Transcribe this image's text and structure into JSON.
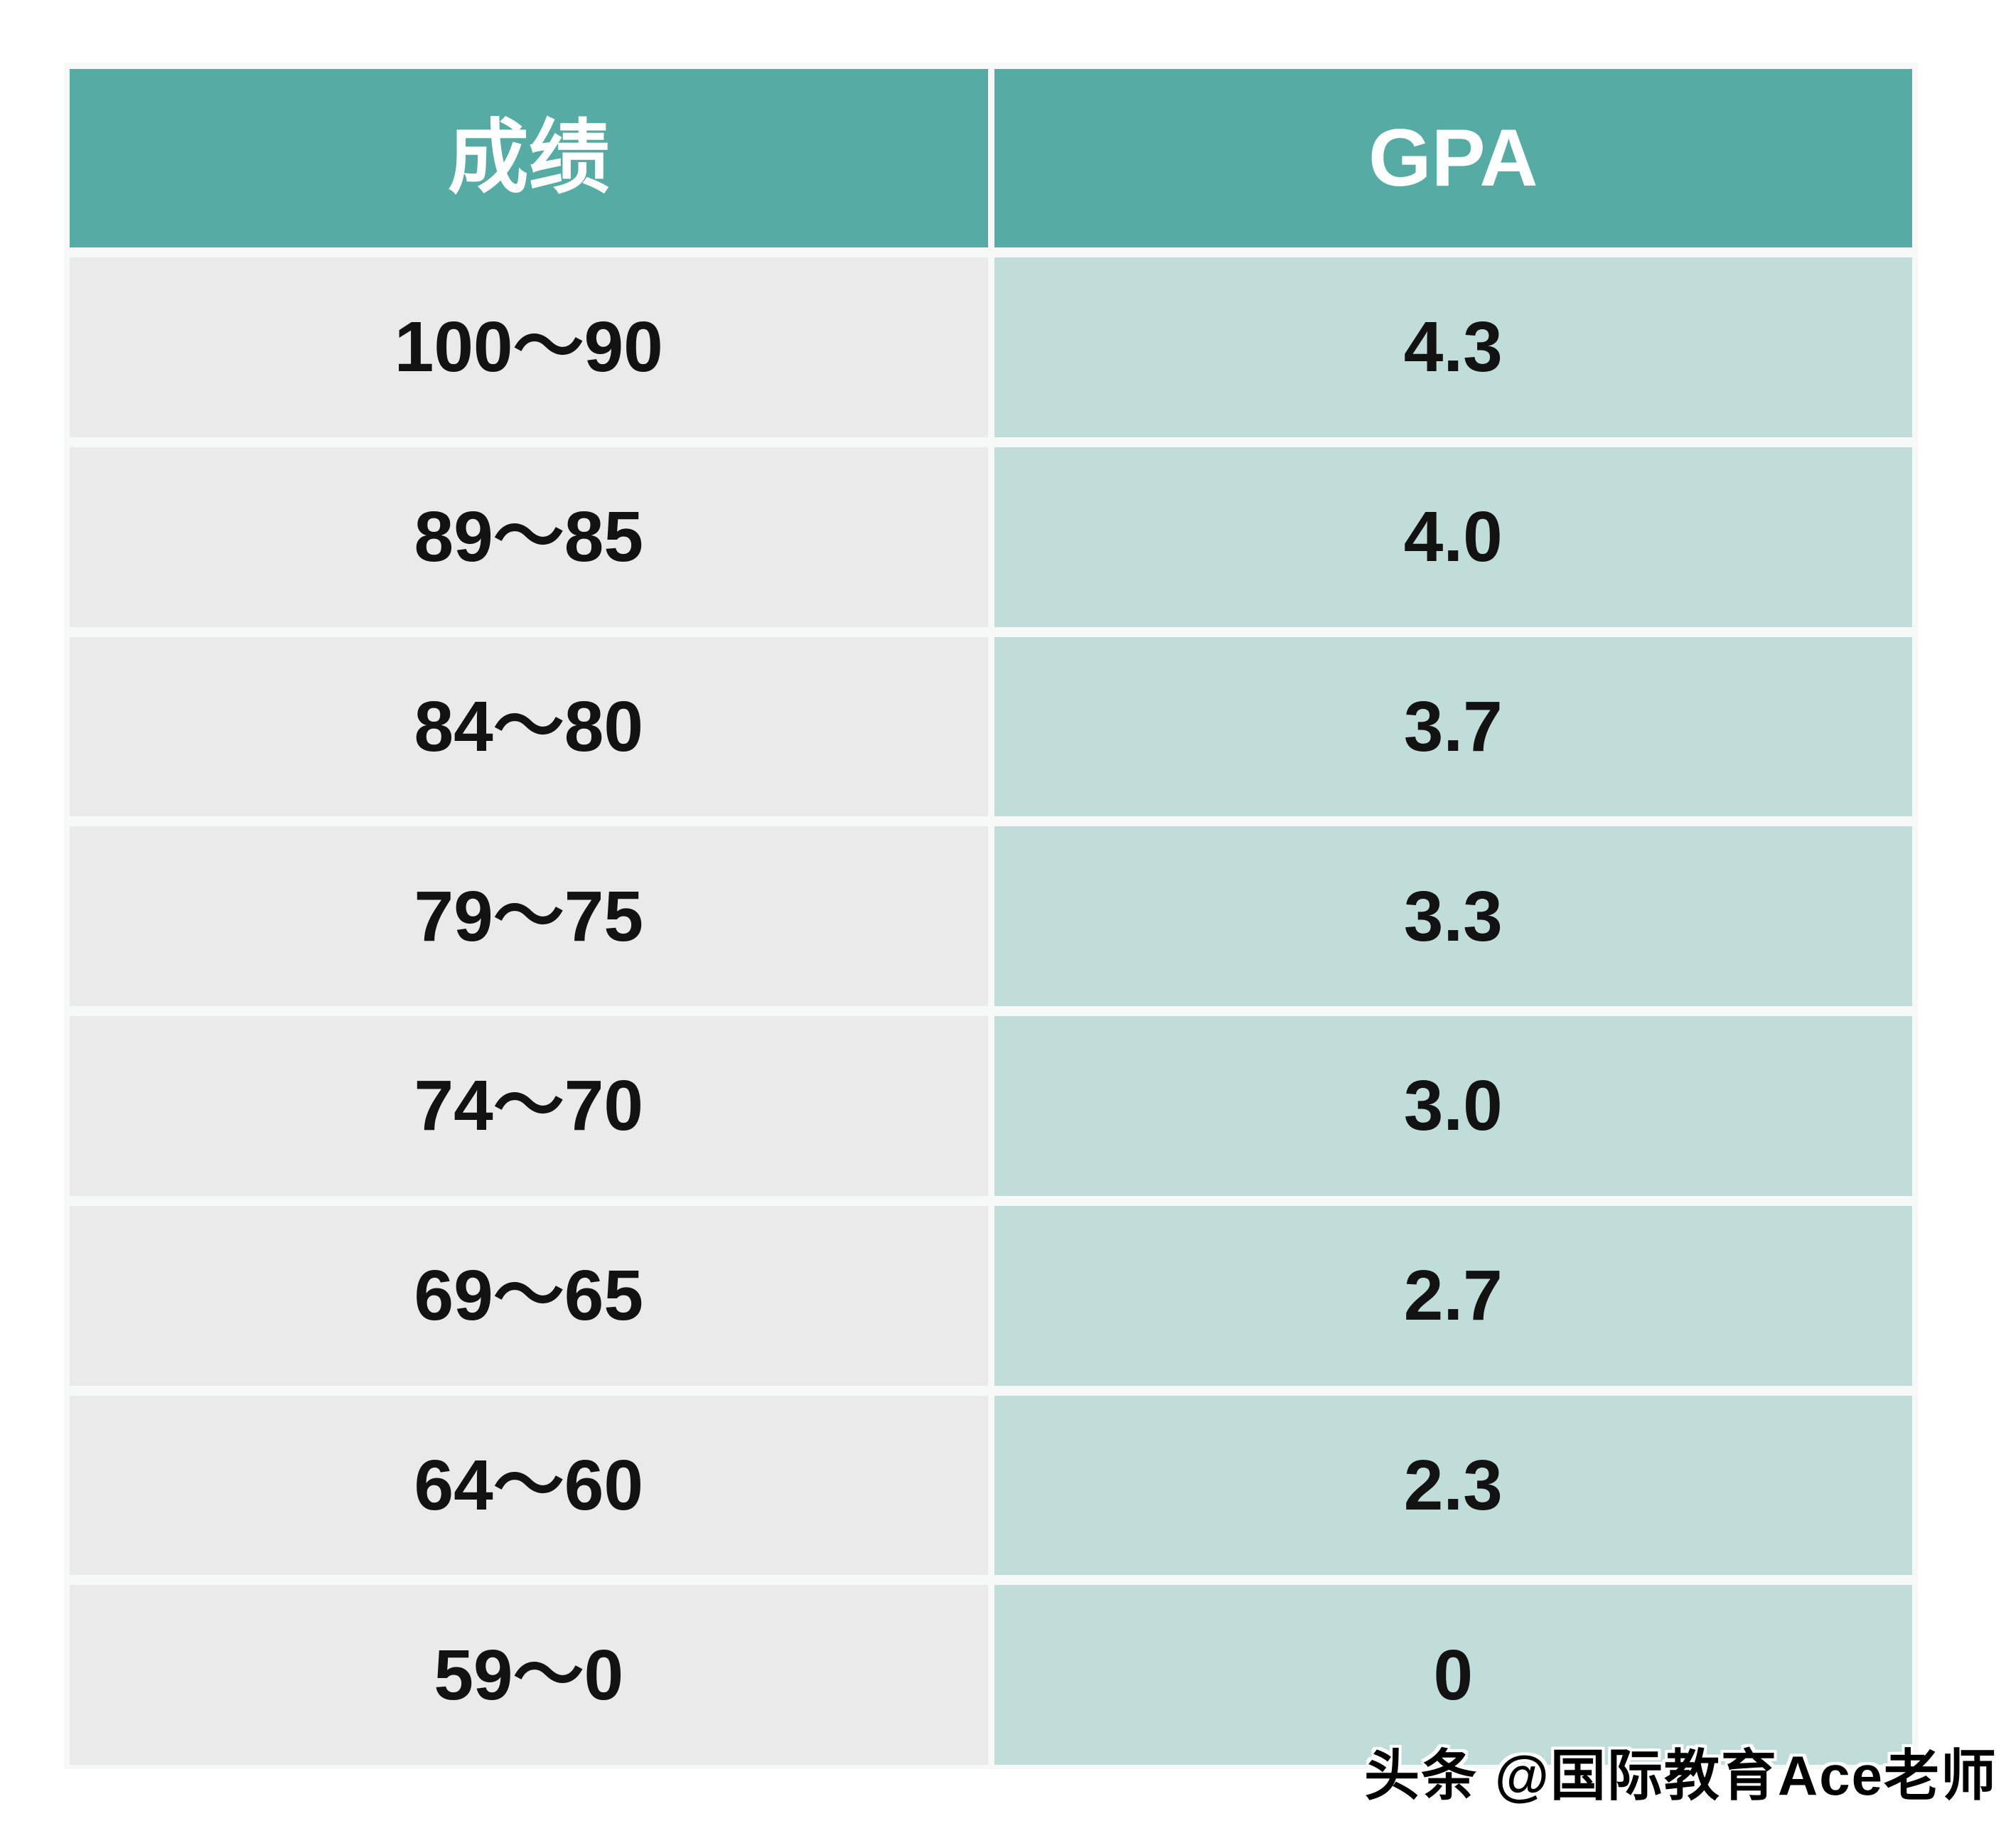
{
  "colors": {
    "page-bg": "#ffffff",
    "panel-bg": "#f7f8f8",
    "header-bg": "#56aca4",
    "header-text": "#ffffff",
    "score-cell-bg": "#e9eae9",
    "gpa-cell-bg": "#c1ddd9",
    "cell-text": "#121212",
    "watermark-text": "#000000",
    "watermark-outline": "#ffffff"
  },
  "table": {
    "header": {
      "score": "成绩",
      "gpa": "GPA"
    },
    "rows": [
      {
        "score": "100～90",
        "gpa": "4.3"
      },
      {
        "score": "89～85",
        "gpa": "4.0"
      },
      {
        "score": "84～80",
        "gpa": "3.7"
      },
      {
        "score": "79～75",
        "gpa": "3.3"
      },
      {
        "score": "74～70",
        "gpa": "3.0"
      },
      {
        "score": "69～65",
        "gpa": "2.7"
      },
      {
        "score": "64～60",
        "gpa": "2.3"
      },
      {
        "score": "59～0",
        "gpa": "0"
      }
    ]
  },
  "watermark": {
    "text": "头条 @国际教育Ace老师"
  },
  "chart_data": {
    "type": "table",
    "columns": [
      "成绩",
      "GPA"
    ],
    "rows": [
      [
        "100～90",
        "4.3"
      ],
      [
        "89～85",
        "4.0"
      ],
      [
        "84～80",
        "3.7"
      ],
      [
        "79～75",
        "3.3"
      ],
      [
        "74～70",
        "3.0"
      ],
      [
        "69～65",
        "2.7"
      ],
      [
        "64～60",
        "2.3"
      ],
      [
        "59～0",
        "0"
      ]
    ]
  }
}
